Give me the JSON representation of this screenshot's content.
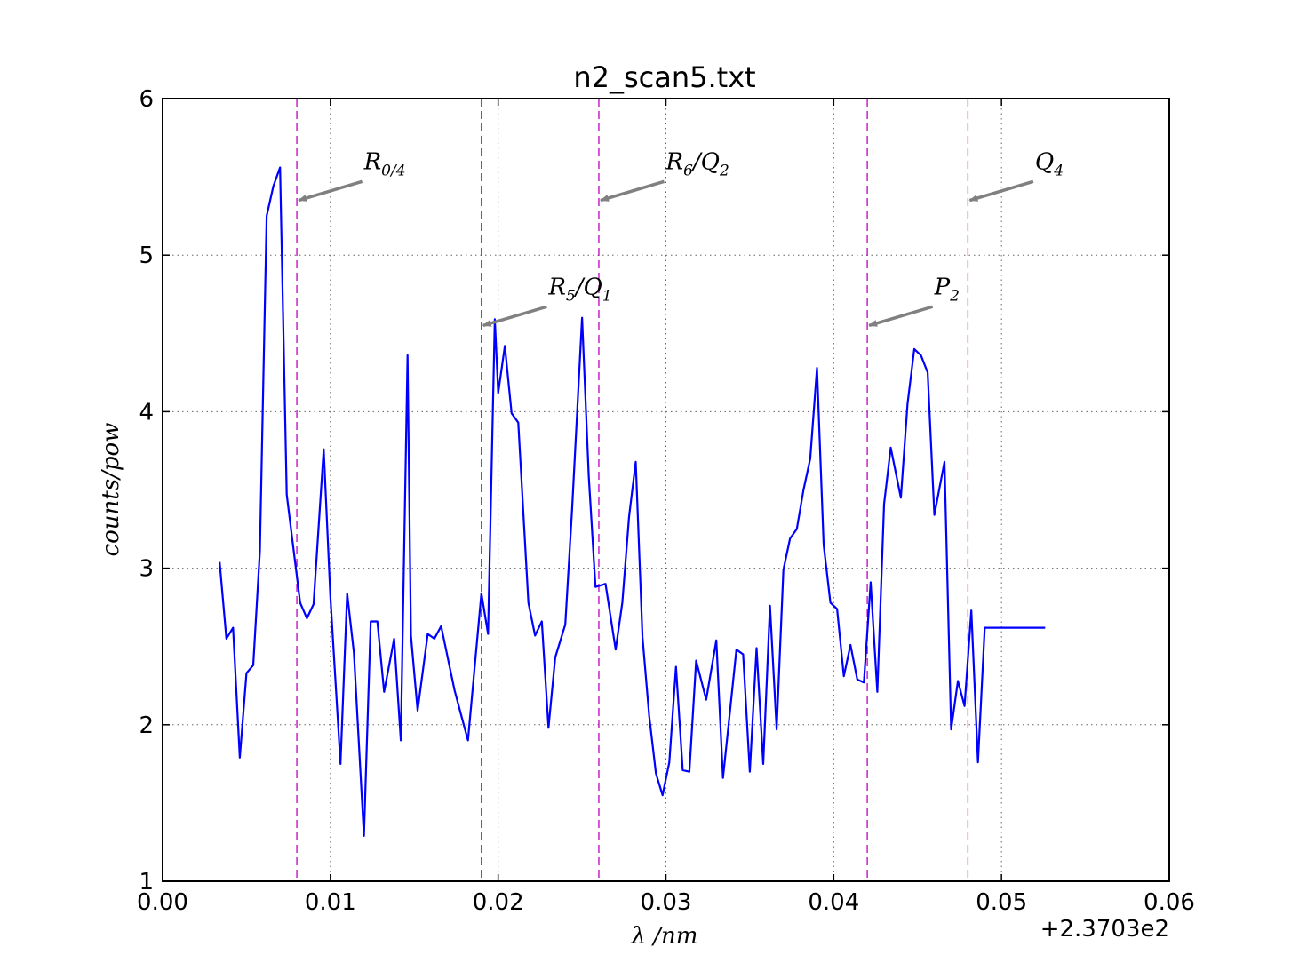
{
  "chart_data": {
    "type": "line",
    "title": "n2_scan5.txt",
    "xlabel": "λ /nm",
    "ylabel": "counts/pow",
    "x_offset_label": "+2.3703e2",
    "xlim": [
      0.0,
      0.06
    ],
    "ylim": [
      1,
      6
    ],
    "grid": true,
    "x_ticks": [
      0.0,
      0.01,
      0.02,
      0.03,
      0.04,
      0.05,
      0.06
    ],
    "x_tick_labels": [
      "0.00",
      "0.01",
      "0.02",
      "0.03",
      "0.04",
      "0.05",
      "0.06"
    ],
    "y_ticks": [
      1,
      2,
      3,
      4,
      5,
      6
    ],
    "y_tick_labels": [
      "1",
      "2",
      "3",
      "4",
      "5",
      "6"
    ],
    "series": [
      {
        "color": "#0000ff",
        "x": [
          0.0034,
          0.0038,
          0.0042,
          0.0046,
          0.005,
          0.0054,
          0.0058,
          0.0062,
          0.0066,
          0.007,
          0.0074,
          0.0082,
          0.0086,
          0.009,
          0.0096,
          0.01,
          0.0106,
          0.011,
          0.0114,
          0.012,
          0.0124,
          0.0128,
          0.0132,
          0.0138,
          0.0142,
          0.0146,
          0.0148,
          0.0152,
          0.0158,
          0.0162,
          0.0166,
          0.0174,
          0.0178,
          0.0182,
          0.019,
          0.0194,
          0.0198,
          0.02,
          0.0204,
          0.0208,
          0.0212,
          0.0218,
          0.0222,
          0.0226,
          0.023,
          0.0234,
          0.024,
          0.0244,
          0.025,
          0.0254,
          0.0258,
          0.0264,
          0.027,
          0.0274,
          0.0278,
          0.0282,
          0.0286,
          0.029,
          0.0294,
          0.0298,
          0.0302,
          0.0306,
          0.031,
          0.0314,
          0.0318,
          0.0324,
          0.033,
          0.0334,
          0.0338,
          0.0342,
          0.0346,
          0.035,
          0.0354,
          0.0358,
          0.0362,
          0.0366,
          0.037,
          0.0374,
          0.0378,
          0.0382,
          0.0386,
          0.039,
          0.0394,
          0.0398,
          0.0402,
          0.0406,
          0.041,
          0.0414,
          0.0418,
          0.0422,
          0.0426,
          0.043,
          0.0434,
          0.044,
          0.0444,
          0.0448,
          0.0452,
          0.0456,
          0.046,
          0.0466,
          0.047,
          0.0474,
          0.0478,
          0.0482,
          0.0486,
          0.049,
          0.0494,
          0.0498,
          0.0502,
          0.0506,
          0.051,
          0.0514,
          0.0518,
          0.0522,
          0.0526
        ],
        "y": [
          3.04,
          2.55,
          2.62,
          1.79,
          2.33,
          2.38,
          3.11,
          5.25,
          5.44,
          5.56,
          3.47,
          2.78,
          2.68,
          2.77,
          3.76,
          2.82,
          1.75,
          2.84,
          2.46,
          1.29,
          2.66,
          2.66,
          2.21,
          2.55,
          1.9,
          4.36,
          2.57,
          2.09,
          2.58,
          2.55,
          2.63,
          2.22,
          2.06,
          1.9,
          2.84,
          2.58,
          4.59,
          4.12,
          4.42,
          3.99,
          3.93,
          2.78,
          2.57,
          2.66,
          1.98,
          2.43,
          2.64,
          3.37,
          4.6,
          3.59,
          2.88,
          2.9,
          2.48,
          2.78,
          3.33,
          3.68,
          2.56,
          2.06,
          1.69,
          1.55,
          1.76,
          2.37,
          1.71,
          1.7,
          2.41,
          2.16,
          2.54,
          1.66,
          2.07,
          2.48,
          2.45,
          1.7,
          2.49,
          1.75,
          2.76,
          1.97,
          2.99,
          3.19,
          3.25,
          3.5,
          3.7,
          4.28,
          3.15,
          2.78,
          2.74,
          2.31,
          2.51,
          2.29,
          2.27,
          2.91,
          2.21,
          3.41,
          3.77,
          3.45,
          4.05,
          4.4,
          4.36,
          4.25,
          3.34,
          3.68,
          1.97,
          2.28,
          2.12,
          2.73,
          1.76,
          2.62,
          2.62,
          2.62,
          2.62,
          2.62,
          2.62,
          2.62,
          2.62,
          2.62,
          2.62
        ]
      }
    ],
    "vlines": [
      {
        "x": 0.008,
        "color": "#bf00bf"
      },
      {
        "x": 0.019,
        "color": "#bf00bf"
      },
      {
        "x": 0.026,
        "color": "#bf00bf"
      },
      {
        "x": 0.042,
        "color": "#bf00bf"
      },
      {
        "x": 0.048,
        "color": "#bf00bf"
      }
    ],
    "annotations": [
      {
        "base": "R",
        "sub": "0/4",
        "rest": "",
        "rest_sub": "",
        "tip_x": 0.008,
        "tip_y": 5.35,
        "text_x": 0.012,
        "text_y": 5.55
      },
      {
        "base": "R",
        "sub": "5",
        "rest": "/Q",
        "rest_sub": "1",
        "tip_x": 0.019,
        "tip_y": 4.55,
        "text_x": 0.023,
        "text_y": 4.75
      },
      {
        "base": "R",
        "sub": "6",
        "rest": "/Q",
        "rest_sub": "2",
        "tip_x": 0.026,
        "tip_y": 5.35,
        "text_x": 0.03,
        "text_y": 5.55
      },
      {
        "base": "P",
        "sub": "2",
        "rest": "",
        "rest_sub": "",
        "tip_x": 0.042,
        "tip_y": 4.55,
        "text_x": 0.046,
        "text_y": 4.75
      },
      {
        "base": "Q",
        "sub": "4",
        "rest": "",
        "rest_sub": "",
        "tip_x": 0.048,
        "tip_y": 5.35,
        "text_x": 0.052,
        "text_y": 5.55
      }
    ],
    "colors": {
      "line": "#0000ff",
      "vline": "#bf00bf",
      "arrow": "#808080",
      "grid": "#666666"
    }
  }
}
